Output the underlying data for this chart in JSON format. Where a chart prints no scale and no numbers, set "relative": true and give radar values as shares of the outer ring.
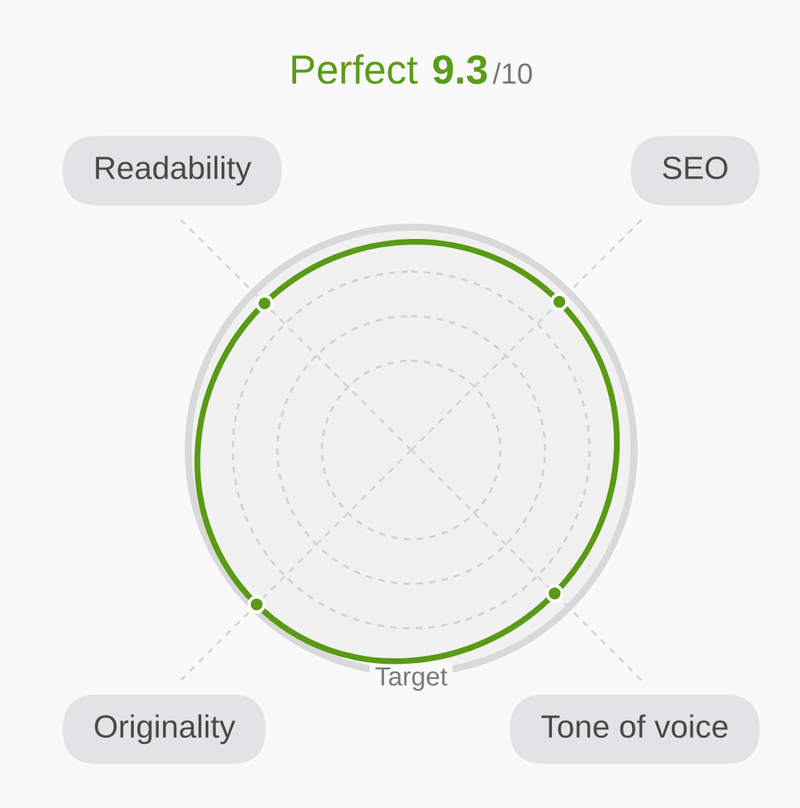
{
  "chart_data": {
    "type": "radar",
    "title": "Perfect",
    "annotations": [
      "9.3",
      "/10",
      "Target"
    ],
    "categories": [
      "SEO",
      "Tone of voice",
      "Originality",
      "Readability"
    ],
    "relative": true,
    "series": [
      {
        "color": "#5a9a15",
        "values": [
          0.94,
          0.91,
          0.98,
          0.93
        ]
      }
    ],
    "marker": "circle",
    "grid": true
  }
}
